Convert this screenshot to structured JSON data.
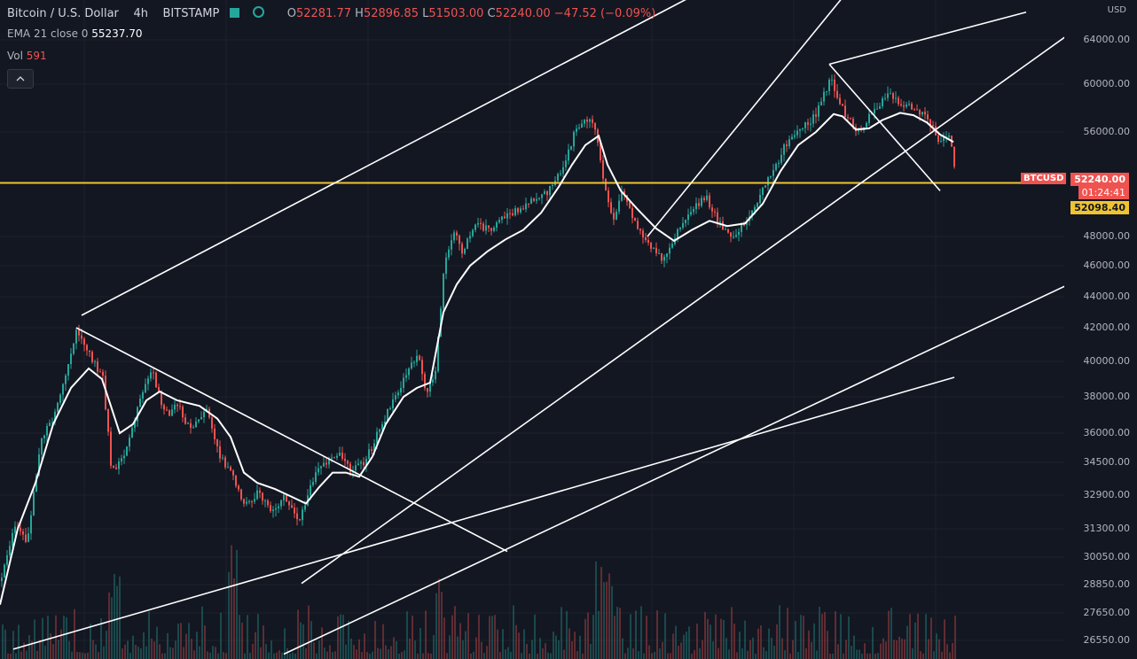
{
  "legend": {
    "symbol": "Bitcoin / U.S. Dollar",
    "interval": "4h",
    "exchange": "BITSTAMP",
    "ohlc": {
      "o_label": "O",
      "o": "52281.77",
      "h_label": "H",
      "h": "52896.85",
      "l_label": "L",
      "l": "51503.00",
      "c_label": "C",
      "c": "52240.00",
      "change": "−47.52 (−0.09%)"
    },
    "ema_label": "EMA 21 close 0",
    "ema_value": "55237.70",
    "vol_label": "Vol",
    "vol_value": "591",
    "colors": {
      "up": "#26a69a",
      "down": "#ef5350",
      "ema": "#ffffff",
      "hline": "#f0c330"
    }
  },
  "price_scale": {
    "unit": "USD",
    "symbol_tag": "BTCUSD",
    "last_price": "52240.00",
    "countdown": "01:24:41",
    "line_price": "52098.40"
  },
  "chart_data": {
    "type": "candlestick",
    "title": "Bitcoin / U.S. Dollar · 4h · BITSTAMP",
    "y_ticks": [
      "64000.00",
      "60000.00",
      "56000.00",
      "48000.00",
      "46000.00",
      "44000.00",
      "42000.00",
      "40000.00",
      "38000.00",
      "36000.00",
      "34500.00",
      "32900.00",
      "31300.00",
      "30050.00",
      "28850.00",
      "27650.00",
      "26550.00"
    ],
    "price_path": [
      [
        0,
        29000
      ],
      [
        15,
        31500
      ],
      [
        30,
        30800
      ],
      [
        45,
        35500
      ],
      [
        60,
        37000
      ],
      [
        75,
        39500
      ],
      [
        85,
        42000
      ],
      [
        100,
        40500
      ],
      [
        115,
        39000
      ],
      [
        125,
        34000
      ],
      [
        140,
        35000
      ],
      [
        155,
        37500
      ],
      [
        170,
        39500
      ],
      [
        185,
        37000
      ],
      [
        200,
        37500
      ],
      [
        215,
        36000
      ],
      [
        230,
        37500
      ],
      [
        245,
        35000
      ],
      [
        260,
        34000
      ],
      [
        275,
        32500
      ],
      [
        290,
        33000
      ],
      [
        305,
        32000
      ],
      [
        320,
        32900
      ],
      [
        335,
        31500
      ],
      [
        350,
        33500
      ],
      [
        365,
        34500
      ],
      [
        380,
        35000
      ],
      [
        395,
        34000
      ],
      [
        410,
        34500
      ],
      [
        425,
        36000
      ],
      [
        440,
        37500
      ],
      [
        455,
        39000
      ],
      [
        470,
        40500
      ],
      [
        480,
        38000
      ],
      [
        490,
        39500
      ],
      [
        500,
        46000
      ],
      [
        510,
        48500
      ],
      [
        520,
        47000
      ],
      [
        535,
        49000
      ],
      [
        550,
        48500
      ],
      [
        565,
        49500
      ],
      [
        580,
        50000
      ],
      [
        595,
        50500
      ],
      [
        610,
        51000
      ],
      [
        625,
        52000
      ],
      [
        640,
        54500
      ],
      [
        650,
        56500
      ],
      [
        660,
        57000
      ],
      [
        670,
        56500
      ],
      [
        680,
        52000
      ],
      [
        690,
        49000
      ],
      [
        700,
        51500
      ],
      [
        710,
        50000
      ],
      [
        720,
        48500
      ],
      [
        730,
        47500
      ],
      [
        745,
        46500
      ],
      [
        755,
        47500
      ],
      [
        765,
        48500
      ],
      [
        780,
        50000
      ],
      [
        795,
        51000
      ],
      [
        810,
        49000
      ],
      [
        825,
        48000
      ],
      [
        840,
        49000
      ],
      [
        855,
        51000
      ],
      [
        870,
        53000
      ],
      [
        885,
        55000
      ],
      [
        900,
        56500
      ],
      [
        915,
        57000
      ],
      [
        925,
        58500
      ],
      [
        935,
        60500
      ],
      [
        945,
        58500
      ],
      [
        955,
        57000
      ],
      [
        970,
        56000
      ],
      [
        985,
        58000
      ],
      [
        1000,
        59000
      ],
      [
        1015,
        58500
      ],
      [
        1030,
        58000
      ],
      [
        1045,
        57000
      ],
      [
        1060,
        55000
      ],
      [
        1070,
        56000
      ],
      [
        1077,
        52240
      ]
    ],
    "ema_path": [
      [
        0,
        28000
      ],
      [
        20,
        31300
      ],
      [
        40,
        33500
      ],
      [
        60,
        36500
      ],
      [
        80,
        38500
      ],
      [
        100,
        39600
      ],
      [
        115,
        39000
      ],
      [
        125,
        37500
      ],
      [
        135,
        36000
      ],
      [
        150,
        36500
      ],
      [
        165,
        37800
      ],
      [
        180,
        38300
      ],
      [
        200,
        37800
      ],
      [
        225,
        37500
      ],
      [
        245,
        36800
      ],
      [
        260,
        35800
      ],
      [
        275,
        34000
      ],
      [
        290,
        33500
      ],
      [
        310,
        33200
      ],
      [
        330,
        32800
      ],
      [
        345,
        32500
      ],
      [
        360,
        33300
      ],
      [
        375,
        34000
      ],
      [
        390,
        34000
      ],
      [
        405,
        33800
      ],
      [
        420,
        34800
      ],
      [
        435,
        36500
      ],
      [
        455,
        38000
      ],
      [
        470,
        38500
      ],
      [
        485,
        38800
      ],
      [
        500,
        43000
      ],
      [
        515,
        44800
      ],
      [
        530,
        46000
      ],
      [
        550,
        47000
      ],
      [
        570,
        47800
      ],
      [
        590,
        48500
      ],
      [
        610,
        49800
      ],
      [
        630,
        51800
      ],
      [
        645,
        53500
      ],
      [
        660,
        55000
      ],
      [
        675,
        55700
      ],
      [
        685,
        53500
      ],
      [
        700,
        51500
      ],
      [
        720,
        50000
      ],
      [
        740,
        48600
      ],
      [
        760,
        47700
      ],
      [
        780,
        48500
      ],
      [
        800,
        49200
      ],
      [
        820,
        48800
      ],
      [
        840,
        49000
      ],
      [
        860,
        50500
      ],
      [
        880,
        53000
      ],
      [
        900,
        55000
      ],
      [
        920,
        56000
      ],
      [
        940,
        57500
      ],
      [
        950,
        57300
      ],
      [
        965,
        56200
      ],
      [
        980,
        56300
      ],
      [
        995,
        57000
      ],
      [
        1015,
        57600
      ],
      [
        1030,
        57400
      ],
      [
        1045,
        56800
      ],
      [
        1060,
        55800
      ],
      [
        1075,
        55237.7
      ]
    ],
    "volume_seed": 591,
    "horizontal_line": 52098.4
  }
}
